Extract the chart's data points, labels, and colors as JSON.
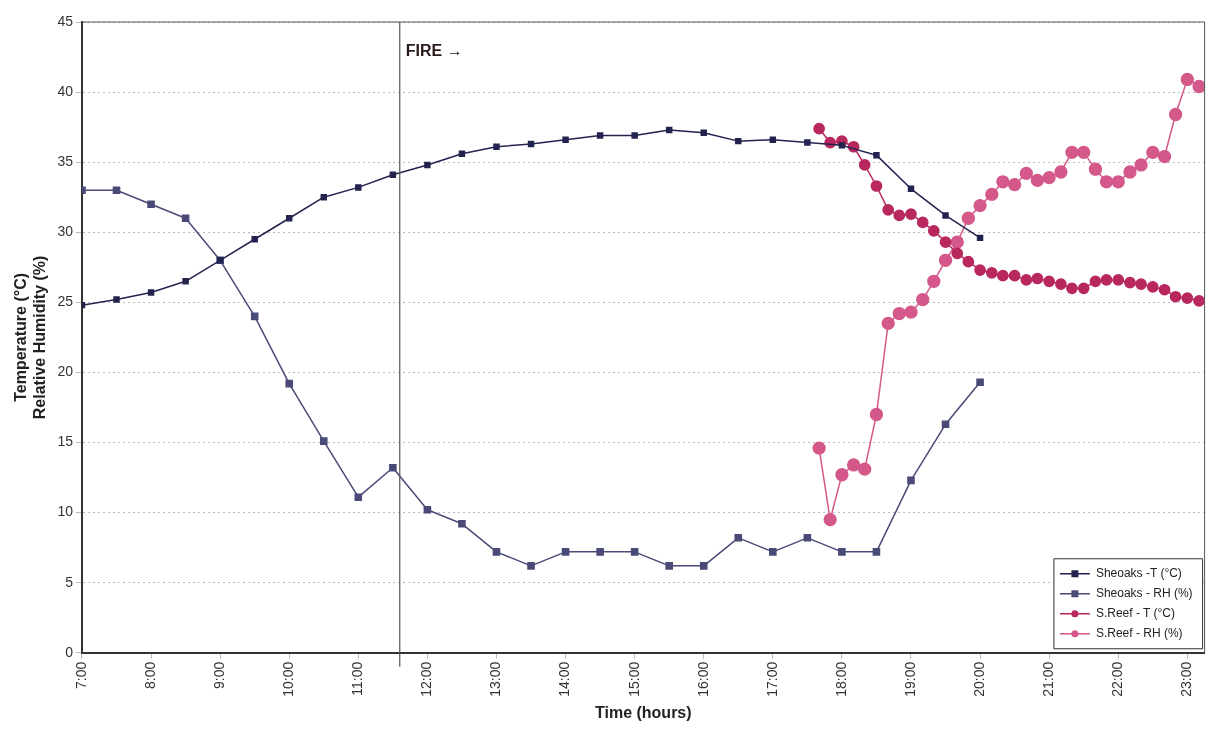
{
  "chart_data": {
    "type": "line",
    "xlabel": "Time (hours)",
    "ylabel": "Temperature (°C)\nRelative Humidity (%)",
    "xlim": [
      7,
      23.25
    ],
    "xticks": [
      {
        "value": 7,
        "label": "7:00"
      },
      {
        "value": 8,
        "label": "8:00"
      },
      {
        "value": 9,
        "label": "9:00"
      },
      {
        "value": 10,
        "label": "10:00"
      },
      {
        "value": 11,
        "label": "11:00"
      },
      {
        "value": 12,
        "label": "12:00"
      },
      {
        "value": 13,
        "label": "13:00"
      },
      {
        "value": 14,
        "label": "14:00"
      },
      {
        "value": 15,
        "label": "15:00"
      },
      {
        "value": 16,
        "label": "16:00"
      },
      {
        "value": 17,
        "label": "17:00"
      },
      {
        "value": 18,
        "label": "18:00"
      },
      {
        "value": 19,
        "label": "19:00"
      },
      {
        "value": 20,
        "label": "20:00"
      },
      {
        "value": 21,
        "label": "21:00"
      },
      {
        "value": 22,
        "label": "22:00"
      },
      {
        "value": 23,
        "label": "23:00"
      }
    ],
    "ylim": [
      0,
      45
    ],
    "yticks": [
      0,
      5,
      10,
      15,
      20,
      25,
      30,
      35,
      40,
      45
    ],
    "grid": "y",
    "legend": "bottom right",
    "line_style": "solid",
    "ref_lines": [
      {
        "axis": "x",
        "value": 11.6,
        "label": "FIRE →",
        "color": "#555555"
      }
    ],
    "series": [
      {
        "name": "Sheoaks -T (°C)",
        "color": "#23234f",
        "marker": "square",
        "x": [
          7,
          7.5,
          8,
          8.5,
          9,
          9.5,
          10,
          10.5,
          11,
          11.5,
          12,
          12.5,
          13,
          13.5,
          14,
          14.5,
          15,
          15.5,
          16,
          16.5,
          17,
          17.5,
          18,
          18.5,
          19,
          19.5,
          20
        ],
        "values": [
          24.8,
          25.2,
          25.7,
          26.5,
          28,
          29.5,
          31,
          32.5,
          33.2,
          34.1,
          34.8,
          35.6,
          36.1,
          36.3,
          36.6,
          36.9,
          36.9,
          37.3,
          37.1,
          36.5,
          36.6,
          36.4,
          36.2,
          35.5,
          33.1,
          31.2,
          29.6
        ]
      },
      {
        "name": "Sheoaks - RH (%)",
        "color": "#4a4a78",
        "marker": "square",
        "x": [
          7,
          7.5,
          8,
          8.5,
          9,
          9.5,
          10,
          10.5,
          11,
          11.5,
          12,
          12.5,
          13,
          13.5,
          14,
          14.5,
          15,
          15.5,
          16,
          16.5,
          17,
          17.5,
          18,
          18.5,
          19,
          19.5,
          20
        ],
        "values": [
          33,
          33,
          32,
          31,
          28,
          24,
          19.2,
          15.1,
          11.1,
          13.2,
          10.2,
          9.2,
          7.2,
          6.2,
          7.2,
          7.2,
          7.2,
          6.2,
          6.2,
          8.2,
          7.2,
          8.2,
          7.2,
          7.2,
          12.3,
          16.3,
          19.3
        ]
      },
      {
        "name": "S.Reef - T (°C)",
        "color": "#b8285e",
        "marker": "circle",
        "x": [
          17.67,
          17.83,
          18,
          18.17,
          18.33,
          18.5,
          18.67,
          18.83,
          19,
          19.17,
          19.33,
          19.5,
          19.67,
          19.83,
          20,
          20.17,
          20.33,
          20.5,
          20.67,
          20.83,
          21,
          21.17,
          21.33,
          21.5,
          21.67,
          21.83,
          22,
          22.17,
          22.33,
          22.5,
          22.67,
          22.83,
          23,
          23.17
        ],
        "values": [
          37.4,
          36.4,
          36.5,
          36.1,
          34.8,
          33.3,
          31.6,
          31.2,
          31.3,
          30.7,
          30.1,
          29.3,
          28.5,
          27.9,
          27.3,
          27.1,
          26.9,
          26.9,
          26.6,
          26.7,
          26.5,
          26.3,
          26,
          26,
          26.5,
          26.6,
          26.6,
          26.4,
          26.3,
          26.1,
          25.9,
          25.4,
          25.3,
          25.1
        ]
      },
      {
        "name": "S.Reef - RH (%)",
        "color": "#d4588a",
        "marker": "circle",
        "x": [
          17.67,
          17.83,
          18,
          18.17,
          18.33,
          18.5,
          18.67,
          18.83,
          19,
          19.17,
          19.33,
          19.5,
          19.67,
          19.83,
          20,
          20.17,
          20.33,
          20.5,
          20.67,
          20.83,
          21,
          21.17,
          21.33,
          21.5,
          21.67,
          21.83,
          22,
          22.17,
          22.33,
          22.5,
          22.67,
          22.83,
          23,
          23.17
        ],
        "values": [
          14.6,
          9.5,
          12.7,
          13.4,
          13.1,
          17,
          23.5,
          24.2,
          24.3,
          25.2,
          26.5,
          28,
          29.3,
          31,
          31.9,
          32.7,
          33.6,
          33.4,
          34.2,
          33.7,
          33.9,
          34.3,
          35.7,
          35.7,
          34.5,
          33.6,
          33.6,
          34.3,
          34.8,
          35.7,
          35.4,
          38.4,
          40.9,
          40.4
        ]
      }
    ]
  }
}
